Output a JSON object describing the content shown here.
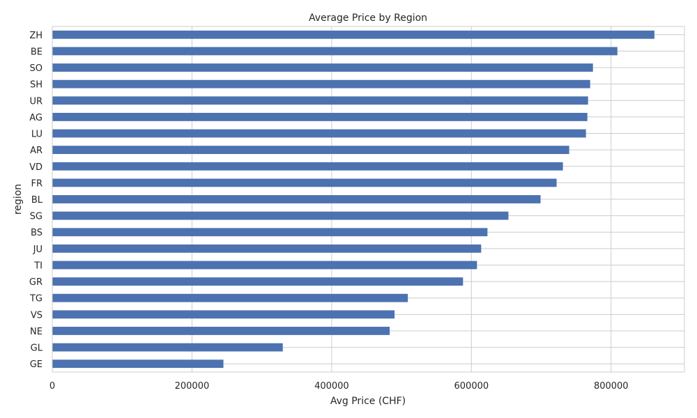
{
  "chart_data": {
    "type": "bar",
    "orientation": "horizontal",
    "title": "Average Price by Region",
    "xlabel": "Avg Price (CHF)",
    "ylabel": "region",
    "categories": [
      "ZH",
      "BE",
      "SO",
      "SH",
      "UR",
      "AG",
      "LU",
      "AR",
      "VD",
      "FR",
      "BL",
      "SG",
      "BS",
      "JU",
      "TI",
      "GR",
      "TG",
      "VS",
      "NE",
      "GL",
      "GE"
    ],
    "values": [
      862000,
      809000,
      774000,
      770000,
      767000,
      766000,
      764000,
      740000,
      731000,
      722000,
      699000,
      653000,
      623000,
      614000,
      608000,
      588000,
      509000,
      490000,
      483000,
      330000,
      245000
    ],
    "xlim": [
      0,
      905000
    ],
    "xticks": [
      0,
      200000,
      400000,
      600000,
      800000
    ],
    "xtick_labels": [
      "0",
      "200000",
      "400000",
      "600000",
      "800000"
    ],
    "grid": true,
    "bar_color": "#4c72b0"
  }
}
